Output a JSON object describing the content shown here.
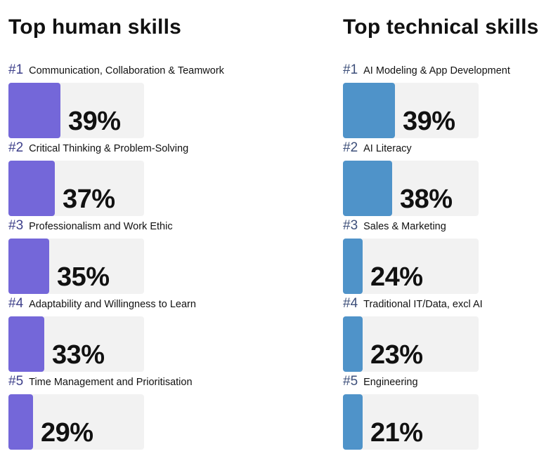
{
  "chart_data": [
    {
      "type": "bar",
      "title": "Top human skills",
      "bar_color": "#7467d9",
      "rank_color": "#3d3f8a",
      "items": [
        {
          "rank": "#1",
          "label": "Communication, Collaboration & Teamwork",
          "value": 39,
          "value_label": "39%"
        },
        {
          "rank": "#2",
          "label": "Critical Thinking & Problem-Solving",
          "value": 37,
          "value_label": "37%"
        },
        {
          "rank": "#3",
          "label": "Professionalism and Work Ethic",
          "value": 35,
          "value_label": "35%"
        },
        {
          "rank": "#4",
          "label": "Adaptability and Willingness to Learn",
          "value": 33,
          "value_label": "33%"
        },
        {
          "rank": "#5",
          "label": "Time Management and Prioritisation",
          "value": 29,
          "value_label": "29%"
        }
      ]
    },
    {
      "type": "bar",
      "title": "Top technical skills",
      "bar_color": "#4f93c9",
      "rank_color": "#3d4f7a",
      "items": [
        {
          "rank": "#1",
          "label": "AI Modeling & App Development",
          "value": 39,
          "value_label": "39%"
        },
        {
          "rank": "#2",
          "label": "AI Literacy",
          "value": 38,
          "value_label": "38%"
        },
        {
          "rank": "#3",
          "label": "Sales & Marketing",
          "value": 24,
          "value_label": "24%"
        },
        {
          "rank": "#4",
          "label": "Traditional IT/Data, excl AI",
          "value": 23,
          "value_label": "23%"
        },
        {
          "rank": "#5",
          "label": "Engineering",
          "value": 21,
          "value_label": "21%"
        }
      ]
    }
  ],
  "track_color": "#f2f2f2"
}
